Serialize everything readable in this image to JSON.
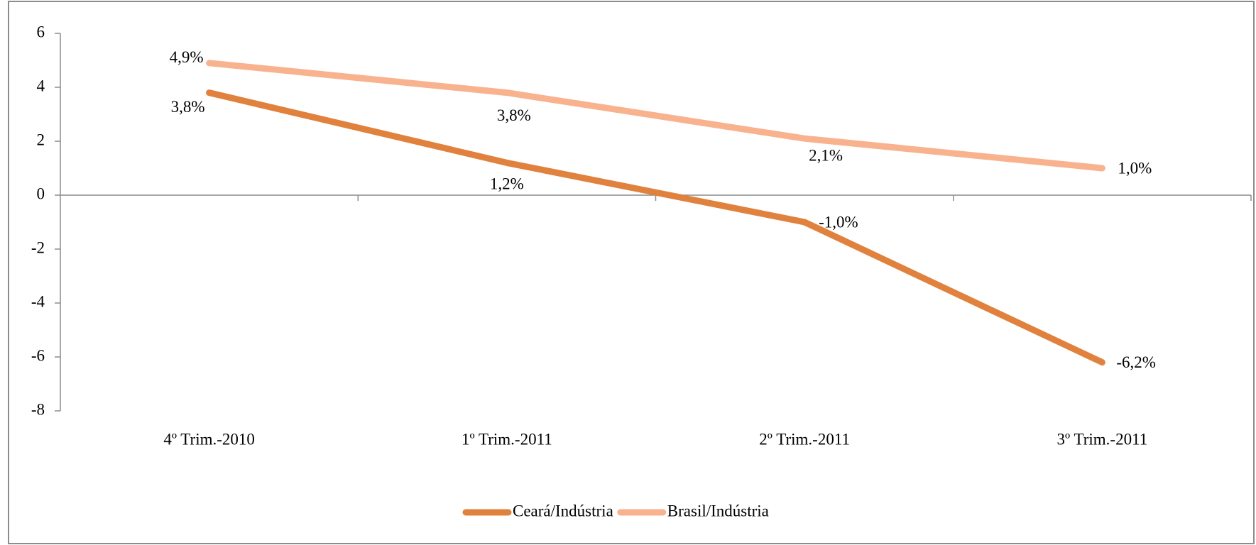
{
  "chart_data": {
    "type": "line",
    "categories": [
      "4º Trim.-2010",
      "1º Trim.-2011",
      "2º Trim.-2011",
      "3º Trim.-2011"
    ],
    "series": [
      {
        "name": "Ceará/Indústria",
        "color": "#e0823d",
        "values": [
          3.8,
          1.2,
          -1.0,
          -6.2
        ],
        "value_labels": [
          "3,8%",
          "1,2%",
          "-1,0%",
          "-6,2%"
        ]
      },
      {
        "name": "Brasil/Indústria",
        "color": "#f9b28e",
        "values": [
          4.9,
          3.8,
          2.1,
          1.0
        ],
        "value_labels": [
          "4,9%",
          "3,8%",
          "2,1%",
          "1,0%"
        ]
      }
    ],
    "ylim": [
      -8,
      6
    ],
    "yticks": [
      -8,
      -6,
      -4,
      -2,
      0,
      2,
      4,
      6
    ],
    "grid": false,
    "legend": "bottom"
  }
}
